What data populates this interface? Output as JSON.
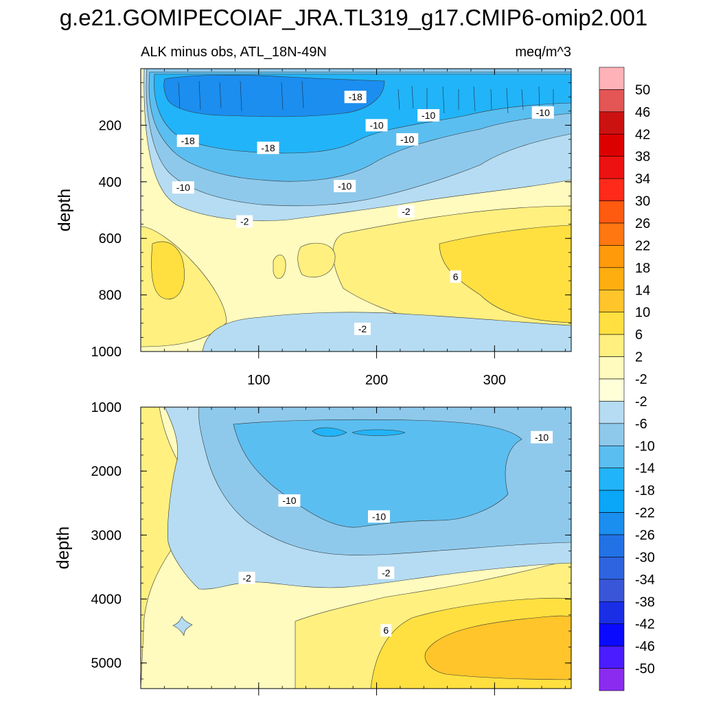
{
  "title": "g.e21.GOMIPECOIAF_JRA.TL319_g17.CMIP6-omip2.001",
  "subtitle_left": "ALK minus obs, ATL_18N-49N",
  "subtitle_right": "meq/m^3",
  "ylabel": "depth",
  "chart_data": {
    "type": "contour",
    "title": "g.e21.GOMIPECOIAF_JRA.TL319_g17.CMIP6-omip2.001",
    "variable": "ALK minus obs, ATL_18N-49N",
    "units": "meq/m^3",
    "x": {
      "range": [
        0,
        365
      ],
      "ticks": [
        100,
        200,
        300
      ]
    },
    "panels": [
      {
        "name": "upper",
        "ylabel": "depth",
        "ylim": [
          0,
          1000
        ],
        "yticks": [
          200,
          400,
          600,
          800,
          1000
        ],
        "contour_labels": [
          {
            "x": 182,
            "y": 100,
            "text": "-18"
          },
          {
            "x": 40,
            "y": 255,
            "text": "-18"
          },
          {
            "x": 108,
            "y": 280,
            "text": "-18"
          },
          {
            "x": 200,
            "y": 200,
            "text": "-10"
          },
          {
            "x": 244,
            "y": 165,
            "text": "-10"
          },
          {
            "x": 341,
            "y": 155,
            "text": "-10"
          },
          {
            "x": 226,
            "y": 250,
            "text": "-10"
          },
          {
            "x": 36,
            "y": 420,
            "text": "-10"
          },
          {
            "x": 173,
            "y": 415,
            "text": "-10"
          },
          {
            "x": 88,
            "y": 540,
            "text": "-2"
          },
          {
            "x": 225,
            "y": 505,
            "text": "-2"
          },
          {
            "x": 188,
            "y": 920,
            "text": "-2"
          },
          {
            "x": 267,
            "y": 735,
            "text": "6"
          }
        ]
      },
      {
        "name": "lower",
        "ylabel": "depth",
        "ylim": [
          1000,
          5400
        ],
        "yticks": [
          1000,
          2000,
          3000,
          4000,
          5000
        ],
        "contour_labels": [
          {
            "x": 340,
            "y": 1470,
            "text": "-10"
          },
          {
            "x": 126,
            "y": 2460,
            "text": "-10"
          },
          {
            "x": 202,
            "y": 2710,
            "text": "-10"
          },
          {
            "x": 90,
            "y": 3670,
            "text": "-2"
          },
          {
            "x": 208,
            "y": 3590,
            "text": "-2"
          },
          {
            "x": 208,
            "y": 4490,
            "text": "6"
          }
        ]
      }
    ],
    "colorbar": {
      "labels": [
        "50",
        "46",
        "42",
        "38",
        "34",
        "30",
        "26",
        "22",
        "18",
        "14",
        "10",
        "6",
        "2",
        "-2",
        "-2",
        "-6",
        "-10",
        "-14",
        "-18",
        "-22",
        "-26",
        "-30",
        "-34",
        "-38",
        "-42",
        "-46",
        "-50"
      ],
      "colors": [
        "#ffb3b8",
        "#e45555",
        "#cc1111",
        "#dd0000",
        "#ee1111",
        "#ff2a1a",
        "#ff5a10",
        "#ff7710",
        "#ff9a0a",
        "#ffae10",
        "#ffc52a",
        "#ffe040",
        "#fff080",
        "#fffbbe",
        "#ffffd8",
        "#b5dcf2",
        "#8ec9ec",
        "#5bbef0",
        "#22b4f8",
        "#0aa6f8",
        "#1b8ef0",
        "#2272e6",
        "#2e64e0",
        "#3a56d8",
        "#1a2ee6",
        "#0a0aff",
        "#4a1cff",
        "#8a2cf0"
      ]
    }
  }
}
